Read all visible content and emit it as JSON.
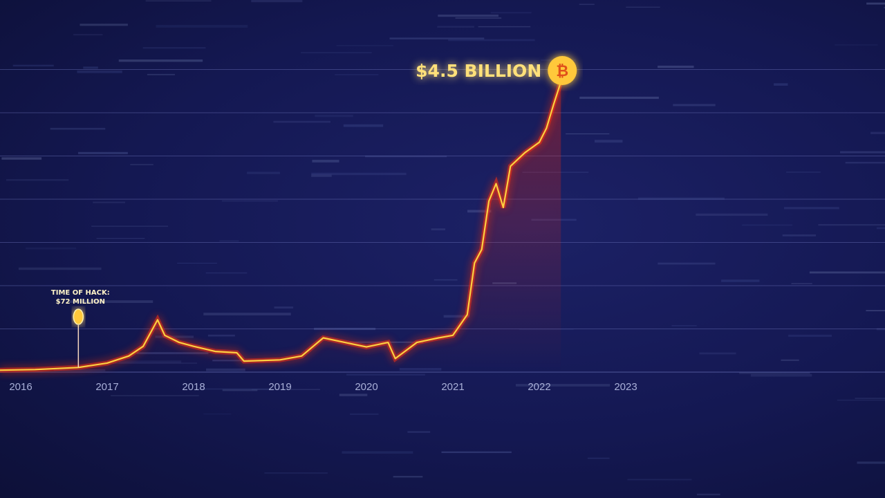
{
  "chart_data": {
    "type": "line",
    "title": "",
    "xlabel": "",
    "ylabel": "",
    "x_unit": "date",
    "y_unit": "USD billions",
    "ylim": [
      0,
      4.9
    ],
    "xlim": [
      "2015-10",
      "2023-12"
    ],
    "grid": "horizontal",
    "legend": "none",
    "x_ticks": [
      "2016",
      "2017",
      "2018",
      "2019",
      "2020",
      "2021",
      "2022",
      "2023"
    ],
    "series": [
      {
        "color": "#ffb020",
        "points": [
          [
            "2015-10",
            0.03
          ],
          [
            "2016-03",
            0.04
          ],
          [
            "2016-09",
            0.072
          ],
          [
            "2017-01",
            0.14
          ],
          [
            "2017-04",
            0.25
          ],
          [
            "2017-06",
            0.4
          ],
          [
            "2017-08",
            0.81
          ],
          [
            "2017-09",
            0.57
          ],
          [
            "2017-11",
            0.46
          ],
          [
            "2018-01",
            0.4
          ],
          [
            "2018-04",
            0.32
          ],
          [
            "2018-07",
            0.3
          ],
          [
            "2018-08",
            0.17
          ],
          [
            "2019-01",
            0.19
          ],
          [
            "2019-04",
            0.25
          ],
          [
            "2019-07",
            0.53
          ],
          [
            "2019-10",
            0.46
          ],
          [
            "2020-01",
            0.39
          ],
          [
            "2020-04",
            0.46
          ],
          [
            "2020-05",
            0.21
          ],
          [
            "2020-08",
            0.46
          ],
          [
            "2020-11",
            0.53
          ],
          [
            "2021-01",
            0.57
          ],
          [
            "2021-03",
            0.89
          ],
          [
            "2021-04",
            1.69
          ],
          [
            "2021-05",
            1.9
          ],
          [
            "2021-06",
            2.65
          ],
          [
            "2021-07",
            2.92
          ],
          [
            "2021-08",
            2.55
          ],
          [
            "2021-09",
            3.19
          ],
          [
            "2021-11",
            3.4
          ],
          [
            "2022-01",
            3.56
          ],
          [
            "2022-02",
            3.78
          ],
          [
            "2022-03",
            4.15
          ],
          [
            "2022-04",
            4.5
          ]
        ]
      }
    ],
    "annotations": [
      {
        "date": "2016-09",
        "value": 0.072,
        "line1": "TIME OF HACK:",
        "line2": "$72 MILLION",
        "icon": "bitcoin-icon"
      },
      {
        "date": "2022-04",
        "value": 4.5,
        "label": "$4.5 BILLION",
        "icon": "bitcoin-icon"
      }
    ]
  },
  "colors": {
    "background": "#141852",
    "line": "#ffb020",
    "glow": "#ff3010",
    "grid": "#5a62a8",
    "coin": "#ffc83a"
  }
}
